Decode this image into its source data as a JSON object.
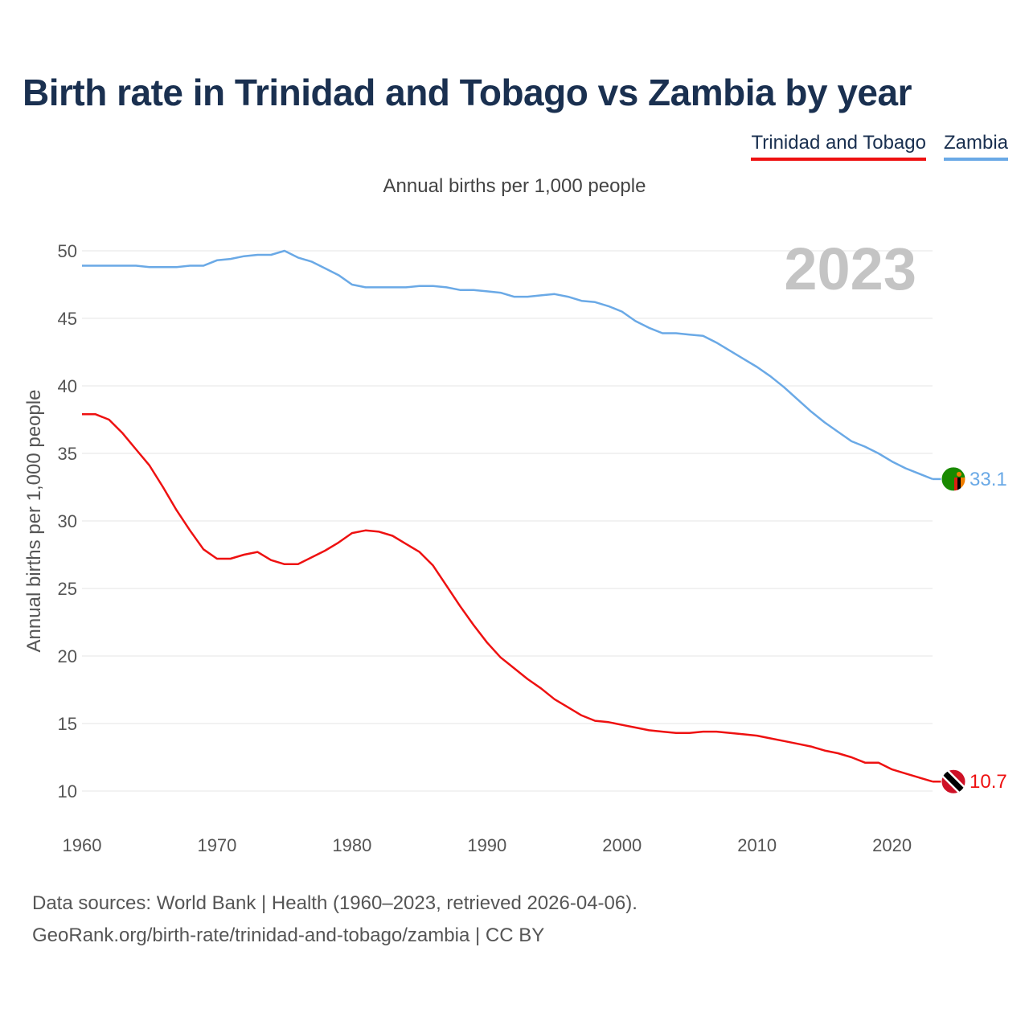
{
  "title": "Birth rate in Trinidad and Tobago vs Zambia by year",
  "subtitle": "Annual births per 1,000 people",
  "legend": [
    {
      "label": "Trinidad and Tobago",
      "color": "#ee1111"
    },
    {
      "label": "Zambia",
      "color": "#6aa9e6"
    }
  ],
  "footer": {
    "line1": "Data sources: World Bank | Health (1960–2023, retrieved 2026-04-06).",
    "line2": "GeoRank.org/birth-rate/trinidad-and-tobago/zambia | CC BY"
  },
  "chart_data": {
    "type": "line",
    "title": "Birth rate in Trinidad and Tobago vs Zambia by year",
    "xlabel": "",
    "ylabel": "Annual births per 1,000 people",
    "year_watermark": "2023",
    "xlim": [
      1960,
      2023
    ],
    "ylim": [
      10,
      50
    ],
    "xticks": [
      1960,
      1970,
      1980,
      1990,
      2000,
      2010,
      2020
    ],
    "yticks": [
      10,
      15,
      20,
      25,
      30,
      35,
      40,
      45,
      50
    ],
    "grid": true,
    "x": [
      1960,
      1961,
      1962,
      1963,
      1964,
      1965,
      1966,
      1967,
      1968,
      1969,
      1970,
      1971,
      1972,
      1973,
      1974,
      1975,
      1976,
      1977,
      1978,
      1979,
      1980,
      1981,
      1982,
      1983,
      1984,
      1985,
      1986,
      1987,
      1988,
      1989,
      1990,
      1991,
      1992,
      1993,
      1994,
      1995,
      1996,
      1997,
      1998,
      1999,
      2000,
      2001,
      2002,
      2003,
      2004,
      2005,
      2006,
      2007,
      2008,
      2009,
      2010,
      2011,
      2012,
      2013,
      2014,
      2015,
      2016,
      2017,
      2018,
      2019,
      2020,
      2021,
      2022,
      2023
    ],
    "series": [
      {
        "name": "Trinidad and Tobago",
        "color": "#ee1111",
        "end_label": "10.7",
        "values": [
          37.9,
          37.9,
          37.5,
          36.5,
          35.3,
          34.1,
          32.5,
          30.8,
          29.3,
          27.9,
          27.2,
          27.2,
          27.5,
          27.7,
          27.1,
          26.8,
          26.8,
          27.3,
          27.8,
          28.4,
          29.1,
          29.3,
          29.2,
          28.9,
          28.3,
          27.7,
          26.7,
          25.2,
          23.7,
          22.3,
          21.0,
          19.9,
          19.1,
          18.3,
          17.6,
          16.8,
          16.2,
          15.6,
          15.2,
          15.1,
          14.9,
          14.7,
          14.5,
          14.4,
          14.3,
          14.3,
          14.4,
          14.4,
          14.3,
          14.2,
          14.1,
          13.9,
          13.7,
          13.5,
          13.3,
          13.0,
          12.8,
          12.5,
          12.1,
          12.1,
          11.6,
          11.3,
          11.0,
          10.7
        ]
      },
      {
        "name": "Zambia",
        "color": "#6aa9e6",
        "end_label": "33.1",
        "values": [
          48.9,
          48.9,
          48.9,
          48.9,
          48.9,
          48.8,
          48.8,
          48.8,
          48.9,
          48.9,
          49.3,
          49.4,
          49.6,
          49.7,
          49.7,
          50.0,
          49.5,
          49.2,
          48.7,
          48.2,
          47.5,
          47.3,
          47.3,
          47.3,
          47.3,
          47.4,
          47.4,
          47.3,
          47.1,
          47.1,
          47.0,
          46.9,
          46.6,
          46.6,
          46.7,
          46.8,
          46.6,
          46.3,
          46.2,
          45.9,
          45.5,
          44.8,
          44.3,
          43.9,
          43.9,
          43.8,
          43.7,
          43.2,
          42.6,
          42.0,
          41.4,
          40.7,
          39.9,
          39.0,
          38.1,
          37.3,
          36.6,
          35.9,
          35.5,
          35.0,
          34.4,
          33.9,
          33.5,
          33.1
        ]
      }
    ]
  }
}
